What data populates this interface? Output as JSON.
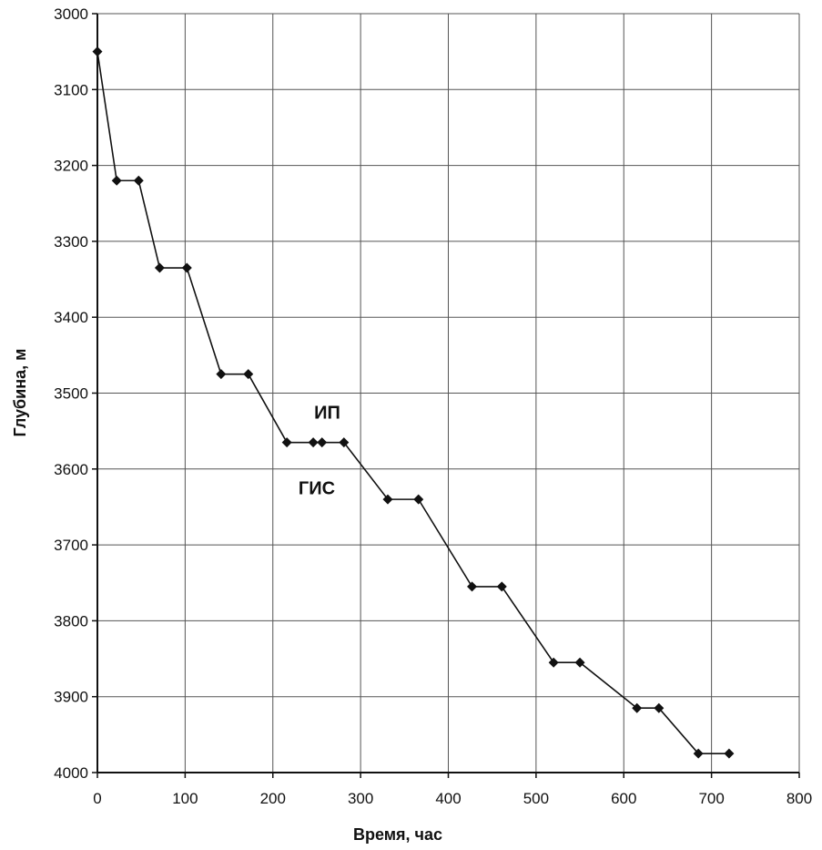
{
  "chart_data": {
    "type": "line",
    "title": "",
    "xlabel": "Время, час",
    "ylabel": "Глубина, м",
    "xlim": [
      0,
      800
    ],
    "ylim": [
      3000,
      4000
    ],
    "y_inverted": true,
    "grid": true,
    "x_ticks": [
      "0",
      "100",
      "200",
      "300",
      "400",
      "500",
      "600",
      "700",
      "800"
    ],
    "y_ticks": [
      "3000",
      "3100",
      "3200",
      "3300",
      "3400",
      "3500",
      "3600",
      "3700",
      "3800",
      "3900",
      "4000"
    ],
    "series": [
      {
        "x": [
          0,
          22,
          47,
          71,
          102,
          141,
          172,
          216,
          246,
          256,
          281,
          331,
          366,
          427,
          461,
          520,
          550,
          615,
          640,
          685,
          720
        ],
        "y": [
          3050,
          3220,
          3220,
          3335,
          3335,
          3475,
          3475,
          3565,
          3565,
          3565,
          3565,
          3640,
          3640,
          3755,
          3755,
          3855,
          3855,
          3915,
          3915,
          3975,
          3975
        ]
      }
    ],
    "annotations": [
      {
        "text": "ИП",
        "x": 262,
        "y": 3525
      },
      {
        "text": "ГИС",
        "x": 250,
        "y": 3625
      }
    ]
  }
}
